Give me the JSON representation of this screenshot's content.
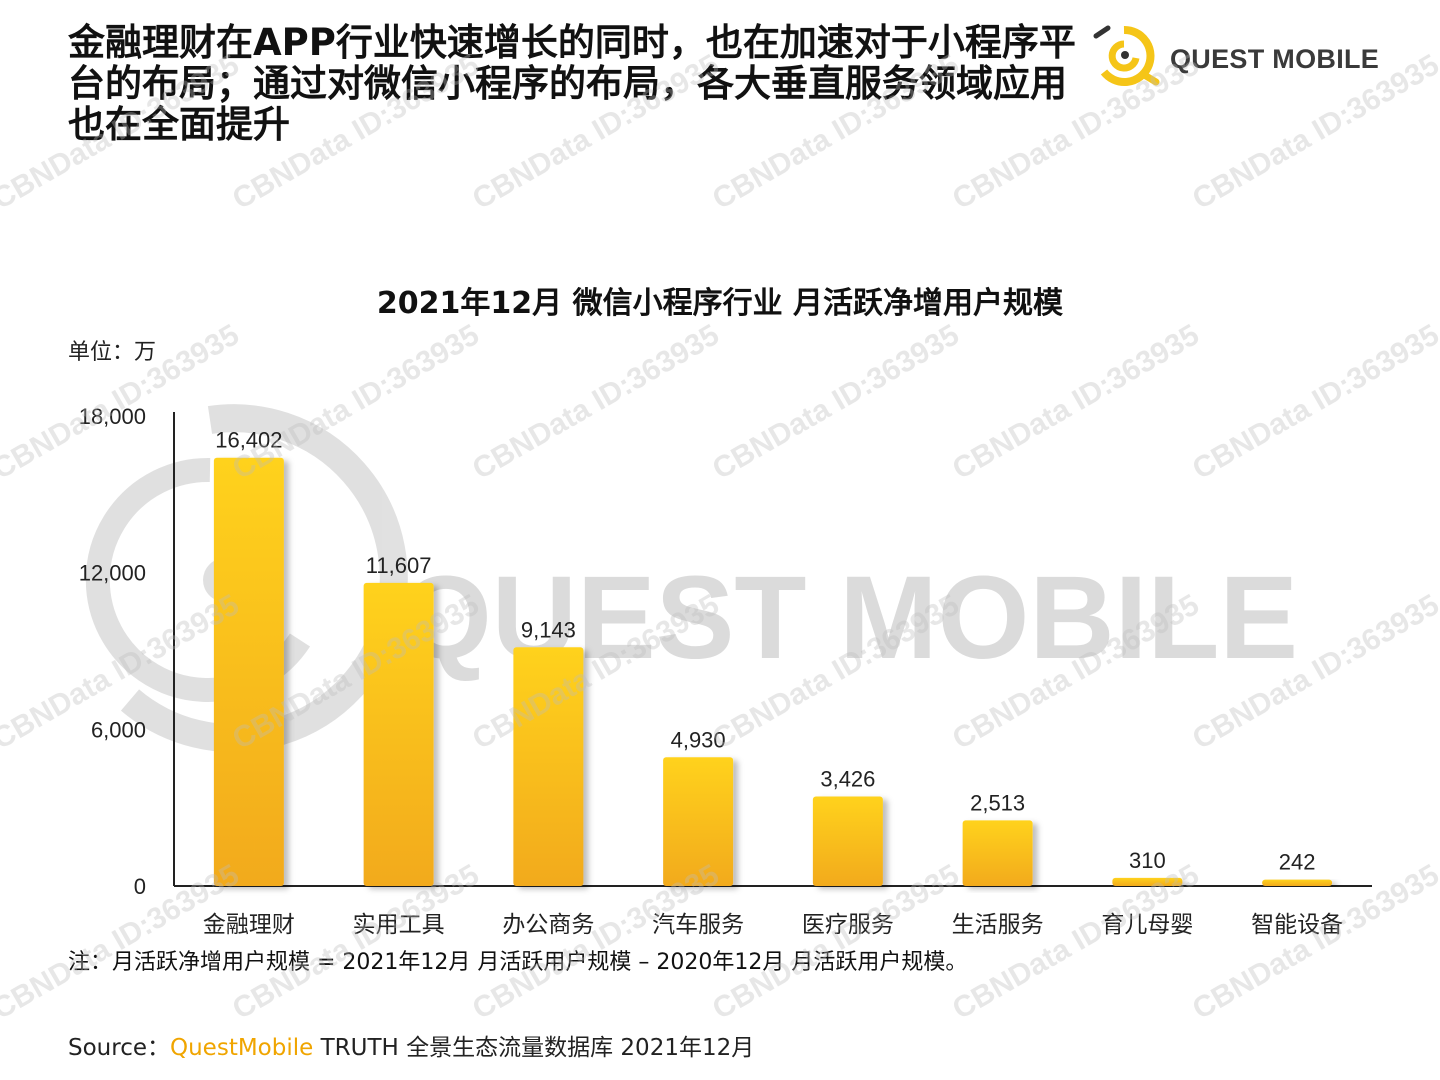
{
  "header": {
    "headline": "金融理财在APP行业快速增长的同时，也在加速对于小程序平台的布局；通过对微信小程序的布局，各大垂直服务领域应用也在全面提升"
  },
  "logo": {
    "text": "QUEST MOBILE",
    "icon": "questmobile-logo-icon"
  },
  "watermark": {
    "text": "CBNData ID:363935",
    "big_text": "QUEST MOBILE"
  },
  "chart_data": {
    "type": "bar",
    "title": "2021年12月 微信小程序行业 月活跃净增用户规模",
    "unit_label": "单位：万",
    "categories": [
      "金融理财",
      "实用工具",
      "办公商务",
      "汽车服务",
      "医疗服务",
      "生活服务",
      "育儿母婴",
      "智能设备"
    ],
    "values": [
      16402,
      11607,
      9143,
      4930,
      3426,
      2513,
      310,
      242
    ],
    "value_labels": [
      "16,402",
      "11,607",
      "9,143",
      "4,930",
      "3,426",
      "2,513",
      "310",
      "242"
    ],
    "ylim": [
      0,
      18000
    ],
    "yticks": [
      0,
      6000,
      12000,
      18000
    ],
    "ytick_labels": [
      "0",
      "6,000",
      "12,000",
      "18,000"
    ],
    "bar_color_top": "#ffd21f",
    "bar_color_bottom": "#f2aa1e",
    "grid": false,
    "legend": "none"
  },
  "footer": {
    "note": "注：月活跃净增用户规模 = 2021年12月 月活跃用户规模 – 2020年12月 月活跃用户规模。",
    "source_prefix": "Source：",
    "source_brand": "QuestMobile",
    "source_rest": " TRUTH 全景生态流量数据库 2021年12月"
  },
  "colors": {
    "accent": "#f0a500",
    "logo_yellow": "#f5c518",
    "watermark_gray": "#c8c8c8",
    "axis": "#222222"
  }
}
